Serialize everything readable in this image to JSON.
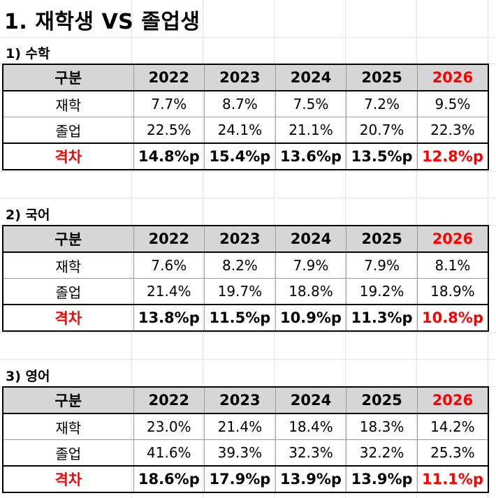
{
  "title": "1. 재학생 VS 졸업생",
  "colors": {
    "highlight": "#ff0000",
    "header_bg": "#d6d6d6"
  },
  "sections": [
    {
      "title": "1) 수학",
      "header": [
        "구분",
        "2022",
        "2023",
        "2024",
        "2025",
        "2026"
      ],
      "rows": [
        {
          "label": "재학",
          "values": [
            "7.7%",
            "8.7%",
            "7.5%",
            "7.2%",
            "9.5%"
          ]
        },
        {
          "label": "졸업",
          "values": [
            "22.5%",
            "24.1%",
            "21.1%",
            "20.7%",
            "22.3%"
          ]
        },
        {
          "label": "격차",
          "values": [
            "14.8%p",
            "15.4%p",
            "13.6%p",
            "13.5%p",
            "12.8%p"
          ]
        }
      ]
    },
    {
      "title": "2) 국어",
      "header": [
        "구분",
        "2022",
        "2023",
        "2024",
        "2025",
        "2026"
      ],
      "rows": [
        {
          "label": "재학",
          "values": [
            "7.6%",
            "8.2%",
            "7.9%",
            "7.9%",
            "8.1%"
          ]
        },
        {
          "label": "졸업",
          "values": [
            "21.4%",
            "19.7%",
            "18.8%",
            "19.2%",
            "18.9%"
          ]
        },
        {
          "label": "격차",
          "values": [
            "13.8%p",
            "11.5%p",
            "10.9%p",
            "11.3%p",
            "10.8%p"
          ]
        }
      ]
    },
    {
      "title": "3) 영어",
      "header": [
        "구분",
        "2022",
        "2023",
        "2024",
        "2025",
        "2026"
      ],
      "rows": [
        {
          "label": "재학",
          "values": [
            "23.0%",
            "21.4%",
            "18.4%",
            "18.3%",
            "14.2%"
          ]
        },
        {
          "label": "졸업",
          "values": [
            "41.6%",
            "39.3%",
            "32.3%",
            "32.2%",
            "25.3%"
          ]
        },
        {
          "label": "격차",
          "values": [
            "18.6%p",
            "17.9%p",
            "13.9%p",
            "13.9%p",
            "11.1%p"
          ]
        }
      ]
    }
  ]
}
